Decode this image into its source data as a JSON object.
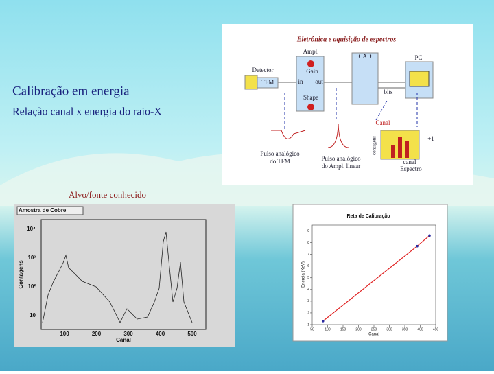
{
  "slide": {
    "title": "Calibração em energia",
    "subtitle": "Relação canal x energia do raio-X",
    "caption": "Alvo/fonte conhecido"
  },
  "diagram": {
    "title": "Eletrônica e aquisição de espectros",
    "labels": {
      "ampl": "Ampl.",
      "cad": "CAD",
      "pc": "PC",
      "detector": "Detector",
      "gain": "Gain",
      "in": "in",
      "out": "out",
      "tfm": "TFM",
      "bits": "bits",
      "shape": "Shape",
      "canal": "Canal",
      "contagens": "contagens",
      "canal_axis": "canal",
      "plus_one": "+1",
      "espectro": "Espectro"
    },
    "pulse_tfm": [
      "Pulso analógico",
      "do TFM"
    ],
    "pulse_ampl": [
      "Pulso analógico",
      "do Ampl. linear"
    ]
  },
  "spectrum_plot": {
    "title": "Amostra de Cobre",
    "ylabel": "Contagens",
    "xlabel": "Canal",
    "yticks": [
      "10",
      "10²",
      "10³",
      "10⁴"
    ],
    "xticks": [
      "100",
      "200",
      "300",
      "400",
      "500"
    ]
  },
  "calibration_plot": {
    "title": "Reta de Calibração",
    "ylabel": "Energia (KeV)",
    "xlabel": "Canal",
    "xlim": [
      50,
      450
    ],
    "ylim": [
      1,
      9.5
    ],
    "xticks": [
      50,
      100,
      150,
      200,
      250,
      300,
      350,
      400,
      450
    ],
    "yticks": [
      1,
      2,
      3,
      4,
      5,
      6,
      7,
      8,
      9
    ],
    "line_color": "#e02020",
    "points_x": [
      85,
      390,
      430
    ],
    "points_y": [
      1.3,
      7.7,
      8.6
    ]
  }
}
